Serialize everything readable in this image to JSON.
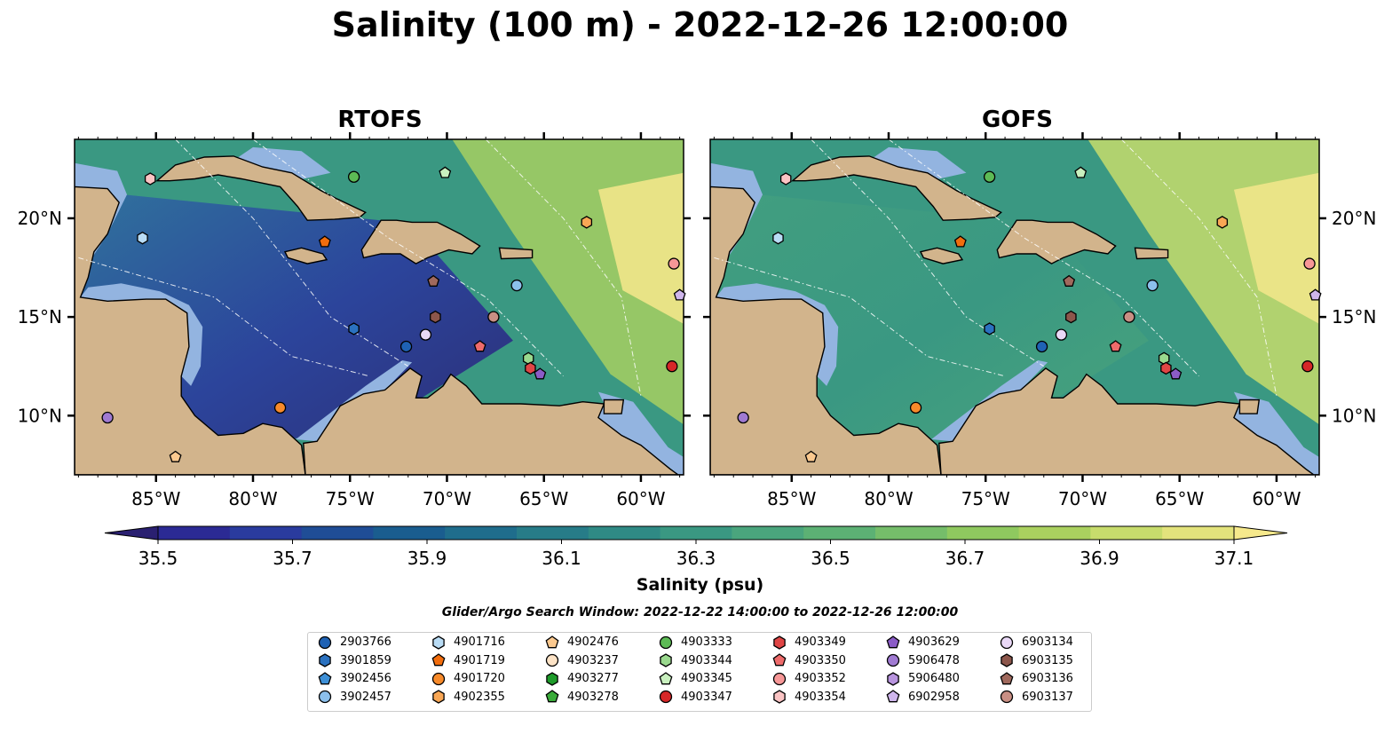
{
  "title": "Salinity (100 m) - 2022-12-26 12:00:00",
  "panels": [
    {
      "name": "RTOFS",
      "low_fraction": 0.55
    },
    {
      "name": "GOFS",
      "low_fraction": 0.15
    }
  ],
  "map": {
    "lon_range": [
      -89.2,
      -57.8
    ],
    "lat_range": [
      7,
      24
    ],
    "lon_ticks": [
      "85°W",
      "80°W",
      "75°W",
      "70°W",
      "65°W",
      "60°W"
    ],
    "lat_ticks": [
      "10°N",
      "15°N",
      "20°N"
    ]
  },
  "colorbar": {
    "label": "Salinity (psu)",
    "ticks": [
      "35.5",
      "35.7",
      "35.9",
      "36.1",
      "36.3",
      "36.5",
      "36.7",
      "36.9",
      "37.1"
    ],
    "colors": [
      "#2a2071",
      "#2b2a94",
      "#2a3b9e",
      "#1f4d96",
      "#1a5d8f",
      "#1f6d8c",
      "#277c88",
      "#2f8a85",
      "#3a9882",
      "#4aa57d",
      "#5cb174",
      "#75bd6a",
      "#8fc95f",
      "#aad15f",
      "#c7dc6c",
      "#e3e37c",
      "#f6e98c"
    ]
  },
  "search_window": "Glider/Argo Search Window: 2022-12-22 14:00:00 to 2022-12-26 12:00:00",
  "legend": [
    {
      "id": "2903766",
      "marker": "circle",
      "color": "#1f62b4"
    },
    {
      "id": "3901859",
      "marker": "hexagon",
      "color": "#2b72c0"
    },
    {
      "id": "3902456",
      "marker": "pentagon",
      "color": "#3d8fd6"
    },
    {
      "id": "3902457",
      "marker": "circle",
      "color": "#8cc0ec"
    },
    {
      "id": "4901716",
      "marker": "hexagon",
      "color": "#b9dcf5"
    },
    {
      "id": "4901719",
      "marker": "pentagon",
      "color": "#f26d0d"
    },
    {
      "id": "4901720",
      "marker": "circle",
      "color": "#f78a2a"
    },
    {
      "id": "4902355",
      "marker": "hexagon",
      "color": "#f9a755"
    },
    {
      "id": "4902476",
      "marker": "pentagon",
      "color": "#fbc98f"
    },
    {
      "id": "4903237",
      "marker": "circle",
      "color": "#fde3c6"
    },
    {
      "id": "4903277",
      "marker": "hexagon",
      "color": "#1e9b2a"
    },
    {
      "id": "4903278",
      "marker": "pentagon",
      "color": "#3aab3a"
    },
    {
      "id": "4903333",
      "marker": "circle",
      "color": "#5dbb55"
    },
    {
      "id": "4903344",
      "marker": "hexagon",
      "color": "#9ad98e"
    },
    {
      "id": "4903345",
      "marker": "pentagon",
      "color": "#c9f0bf"
    },
    {
      "id": "4903347",
      "marker": "circle",
      "color": "#d62728"
    },
    {
      "id": "4903349",
      "marker": "hexagon",
      "color": "#e04545"
    },
    {
      "id": "4903350",
      "marker": "pentagon",
      "color": "#ee6b6b"
    },
    {
      "id": "4903352",
      "marker": "circle",
      "color": "#f79797"
    },
    {
      "id": "4903354",
      "marker": "hexagon",
      "color": "#fbc4c4"
    },
    {
      "id": "4903629",
      "marker": "pentagon",
      "color": "#8b5cc7"
    },
    {
      "id": "5906478",
      "marker": "circle",
      "color": "#a07ad2"
    },
    {
      "id": "5906480",
      "marker": "hexagon",
      "color": "#b894de"
    },
    {
      "id": "6902958",
      "marker": "pentagon",
      "color": "#cfb6ec"
    },
    {
      "id": "6903134",
      "marker": "circle",
      "color": "#ead9f7"
    },
    {
      "id": "6903135",
      "marker": "hexagon",
      "color": "#8c564b"
    },
    {
      "id": "6903136",
      "marker": "pentagon",
      "color": "#a0695d"
    },
    {
      "id": "6903137",
      "marker": "circle",
      "color": "#c98f84"
    }
  ],
  "floats": [
    {
      "id": "4903354",
      "lon": -85.3,
      "lat": 22.0
    },
    {
      "id": "4901716",
      "lon": -85.7,
      "lat": 19.0
    },
    {
      "id": "4903333",
      "lon": -74.8,
      "lat": 22.1
    },
    {
      "id": "4903345",
      "lon": -70.1,
      "lat": 22.3
    },
    {
      "id": "4901719",
      "lon": -76.3,
      "lat": 18.8
    },
    {
      "id": "4902355",
      "lon": -62.8,
      "lat": 19.8
    },
    {
      "id": "4903352",
      "lon": -58.3,
      "lat": 17.7
    },
    {
      "id": "6902958",
      "lon": -58.0,
      "lat": 16.1
    },
    {
      "id": "3902457",
      "lon": -66.4,
      "lat": 16.6
    },
    {
      "id": "6903136",
      "lon": -70.7,
      "lat": 16.8
    },
    {
      "id": "6903135",
      "lon": -70.6,
      "lat": 15.0
    },
    {
      "id": "6903137",
      "lon": -67.6,
      "lat": 15.0
    },
    {
      "id": "3901859",
      "lon": -74.8,
      "lat": 14.4
    },
    {
      "id": "6903134",
      "lon": -71.1,
      "lat": 14.1
    },
    {
      "id": "2903766",
      "lon": -72.1,
      "lat": 13.5
    },
    {
      "id": "4903350",
      "lon": -68.3,
      "lat": 13.5
    },
    {
      "id": "4903344",
      "lon": -65.8,
      "lat": 12.9
    },
    {
      "id": "4903349",
      "lon": -65.7,
      "lat": 12.4
    },
    {
      "id": "4903629",
      "lon": -65.2,
      "lat": 12.1
    },
    {
      "id": "4903347",
      "lon": -58.4,
      "lat": 12.5
    },
    {
      "id": "4901720",
      "lon": -78.6,
      "lat": 10.4
    },
    {
      "id": "5906478",
      "lon": -87.5,
      "lat": 9.9
    },
    {
      "id": "4902476",
      "lon": -84.0,
      "lat": 7.9
    }
  ]
}
